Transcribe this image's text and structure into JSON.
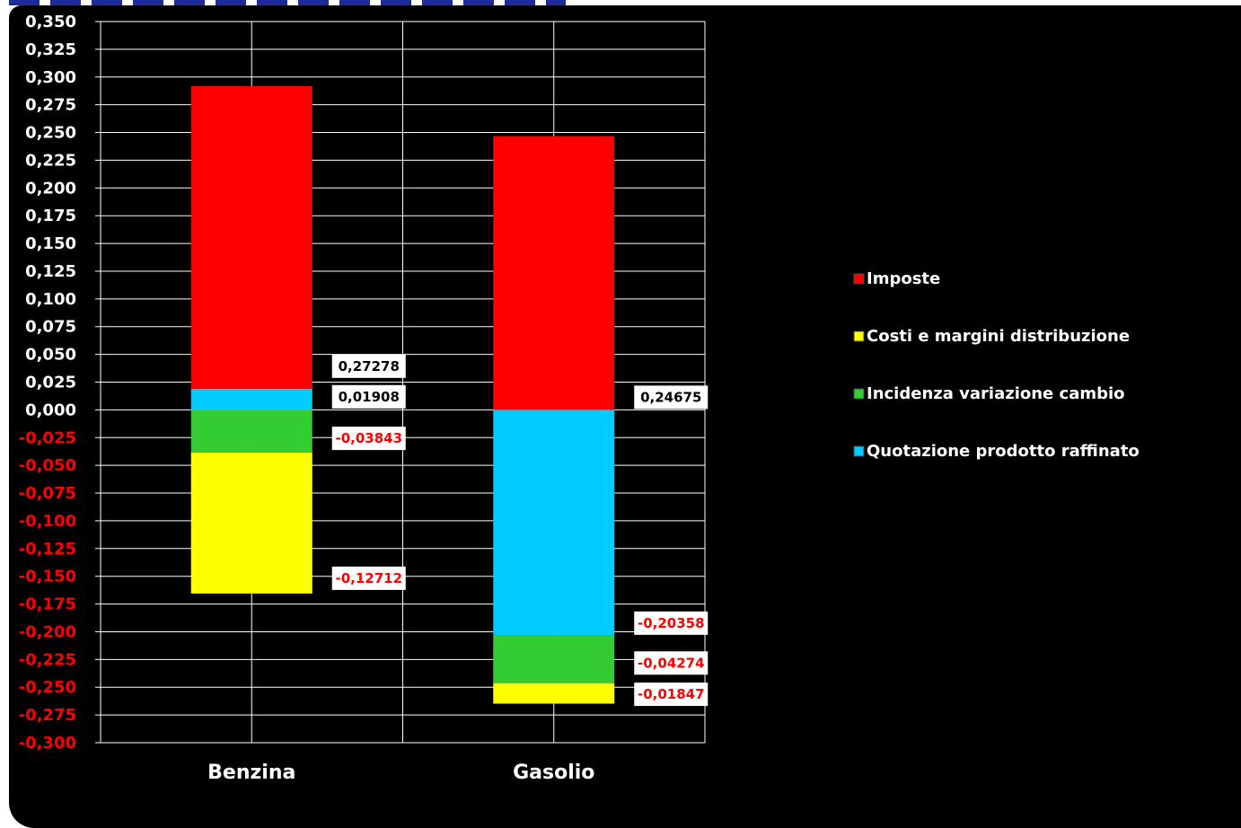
{
  "chart_data": {
    "type": "bar",
    "stacked": true,
    "categories": [
      "Benzina",
      "Gasolio"
    ],
    "series": [
      {
        "name": "Quotazione prodotto raffinato",
        "color": "#00ccff",
        "values": [
          0.01908,
          -0.20358
        ]
      },
      {
        "name": "Incidenza variazione cambio",
        "color": "#33cc33",
        "values": [
          -0.03843,
          -0.04274
        ]
      },
      {
        "name": "Costi e margini distribuzione",
        "color": "#ffff00",
        "values": [
          -0.12712,
          -0.01847
        ]
      },
      {
        "name": "Imposte",
        "color": "#ff0000",
        "values": [
          0.27278,
          0.24675
        ]
      }
    ],
    "legend_order": [
      "Imposte",
      "Costi e margini distribuzione",
      "Incidenza variazione cambio",
      "Quotazione prodotto raffinato"
    ],
    "legend_position": "right",
    "ylim": [
      -0.3,
      0.35
    ],
    "ytick_step": 0.025,
    "ytick_labels": [
      "0,350",
      "0,325",
      "0,300",
      "0,275",
      "0,250",
      "0,225",
      "0,200",
      "0,175",
      "0,150",
      "0,125",
      "0,100",
      "0,075",
      "0,050",
      "0,025",
      "0,000",
      "-0,025",
      "-0,050",
      "-0,075",
      "-0,100",
      "-0,125",
      "-0,150",
      "-0,175",
      "-0,200",
      "-0,225",
      "-0,250",
      "-0,275",
      "-0,300"
    ],
    "data_labels": [
      {
        "category": "Benzina",
        "series": "Imposte",
        "text": "0,27278"
      },
      {
        "category": "Benzina",
        "series": "Quotazione prodotto raffinato",
        "text": "0,01908"
      },
      {
        "category": "Benzina",
        "series": "Incidenza variazione cambio",
        "text": "-0,03843"
      },
      {
        "category": "Benzina",
        "series": "Costi e margini distribuzione",
        "text": "-0,12712"
      },
      {
        "category": "Gasolio",
        "series": "Imposte",
        "text": "0,24675"
      },
      {
        "category": "Gasolio",
        "series": "Quotazione prodotto raffinato",
        "text": "-0,20358"
      },
      {
        "category": "Gasolio",
        "series": "Incidenza variazione cambio",
        "text": "-0,04274"
      },
      {
        "category": "Gasolio",
        "series": "Costi e margini distribuzione",
        "text": "-0,01847"
      }
    ],
    "grid": true,
    "colors": {
      "background": "#000000",
      "grid": "#ffffff",
      "positive_tick": "#ffffff",
      "negative_tick": "#ff0000",
      "negative_label": "#ff0000",
      "positive_label": "#000000"
    }
  }
}
